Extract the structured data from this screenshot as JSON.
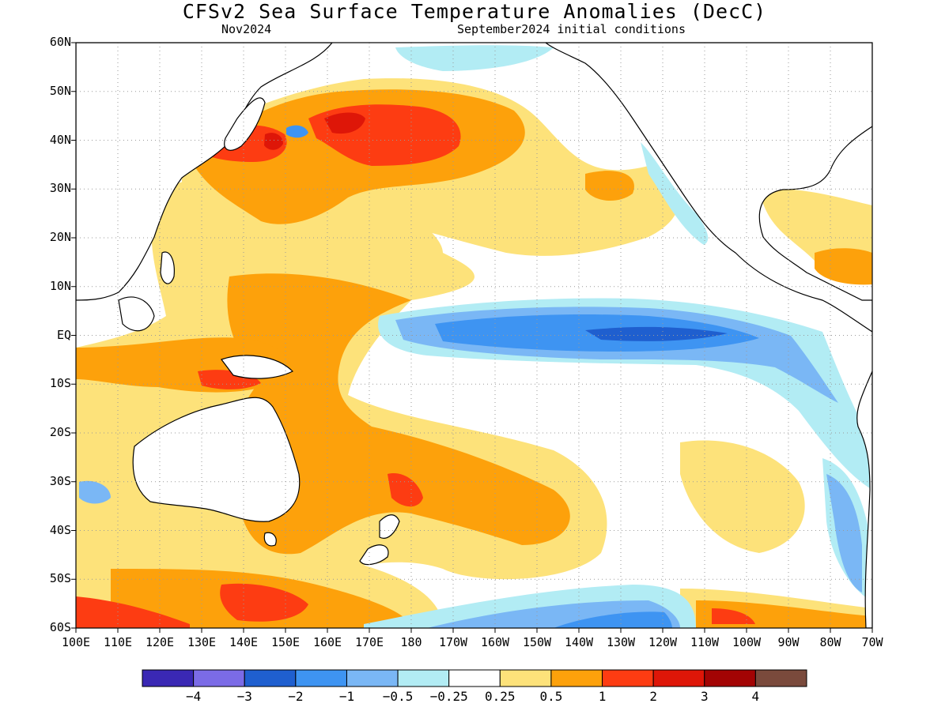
{
  "title": "CFSv2 Sea Surface Temperature Anomalies (DecC)",
  "subtitle_left": "Nov2024",
  "subtitle_right": "September2024 initial conditions",
  "lat_labels": [
    "60N",
    "50N",
    "40N",
    "30N",
    "20N",
    "10N",
    "EQ",
    "10S",
    "20S",
    "30S",
    "40S",
    "50S",
    "60S"
  ],
  "lon_labels": [
    "100E",
    "110E",
    "120E",
    "130E",
    "140E",
    "150E",
    "160E",
    "170E",
    "180",
    "170W",
    "160W",
    "150W",
    "140W",
    "130W",
    "120W",
    "110W",
    "100W",
    "90W",
    "80W",
    "70W"
  ],
  "colorbar": {
    "colors": [
      "#3a28b4",
      "#7b6be6",
      "#1f5fcf",
      "#3e94f2",
      "#7ab7f5",
      "#b2ecf4",
      "#ffffff",
      "#fde27a",
      "#fda10b",
      "#fd3c12",
      "#de1608",
      "#a30404",
      "#7a4a3c"
    ],
    "labels": [
      "-4",
      "-3",
      "-2",
      "-1",
      "-0.5",
      "-0.25",
      "0.25",
      "0.5",
      "1",
      "2",
      "3",
      "4"
    ]
  },
  "colors": {
    "land_outline": "#000000",
    "grid": "#9a9a9a"
  }
}
